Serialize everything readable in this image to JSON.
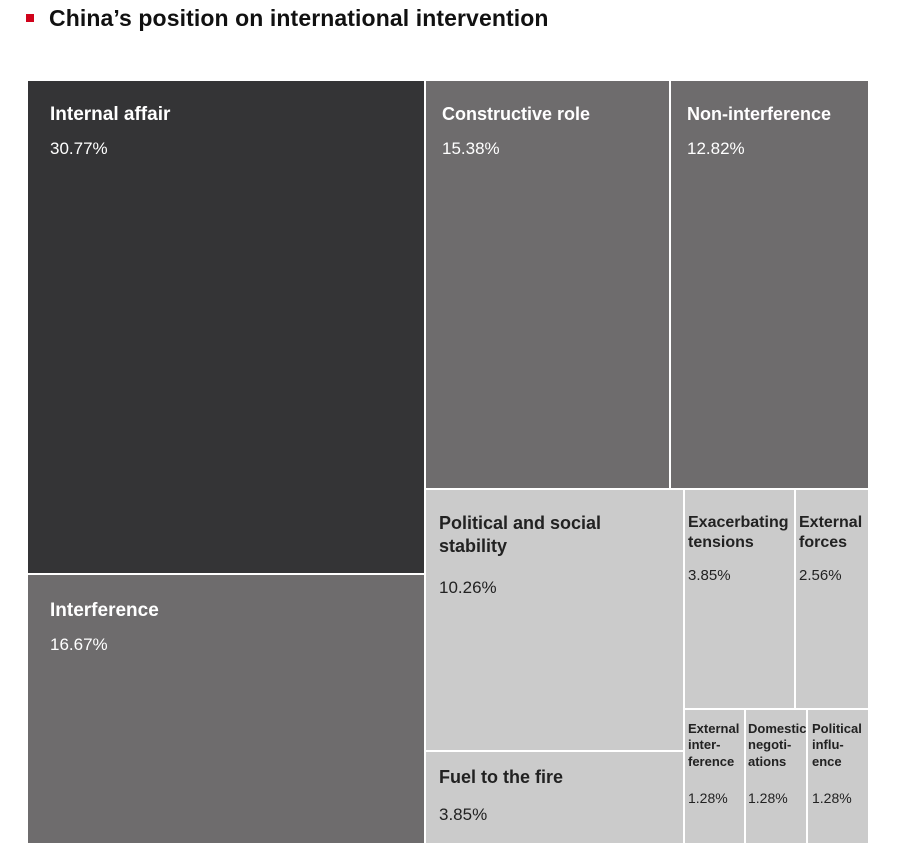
{
  "colors": {
    "accent": "#d0021b",
    "darkest": "#343436",
    "mid": "#6e6c6d",
    "light": "#cbcbcb"
  },
  "chart_data": {
    "type": "treemap",
    "title": "China’s position on international intervention",
    "items": [
      {
        "label": "Internal affair",
        "value": 30.77,
        "value_label": "30.77%",
        "color": "#343436"
      },
      {
        "label": "Interference",
        "value": 16.67,
        "value_label": "16.67%",
        "color": "#6e6c6d"
      },
      {
        "label": "Constructive role",
        "value": 15.38,
        "value_label": "15.38%",
        "color": "#6e6c6d"
      },
      {
        "label": "Non-interference",
        "value": 12.82,
        "value_label": "12.82%",
        "color": "#6e6c6d"
      },
      {
        "label": "Political and social stability",
        "value": 10.26,
        "value_label": "10.26%",
        "color": "#cbcbcb"
      },
      {
        "label": "Fuel to the fire",
        "value": 3.85,
        "value_label": "3.85%",
        "color": "#cbcbcb"
      },
      {
        "label": "Exacerbating tensions",
        "value": 3.85,
        "value_label": "3.85%",
        "color": "#cbcbcb"
      },
      {
        "label": "External forces",
        "value": 2.56,
        "value_label": "2.56%",
        "color": "#cbcbcb"
      },
      {
        "label": "External inter-ference",
        "value": 1.28,
        "value_label": "1.28%",
        "color": "#cbcbcb"
      },
      {
        "label": "Domestic negoti-ations",
        "value": 1.28,
        "value_label": "1.28%",
        "color": "#cbcbcb"
      },
      {
        "label": "Political influ-ence",
        "value": 1.28,
        "value_label": "1.28%",
        "color": "#cbcbcb"
      }
    ]
  }
}
